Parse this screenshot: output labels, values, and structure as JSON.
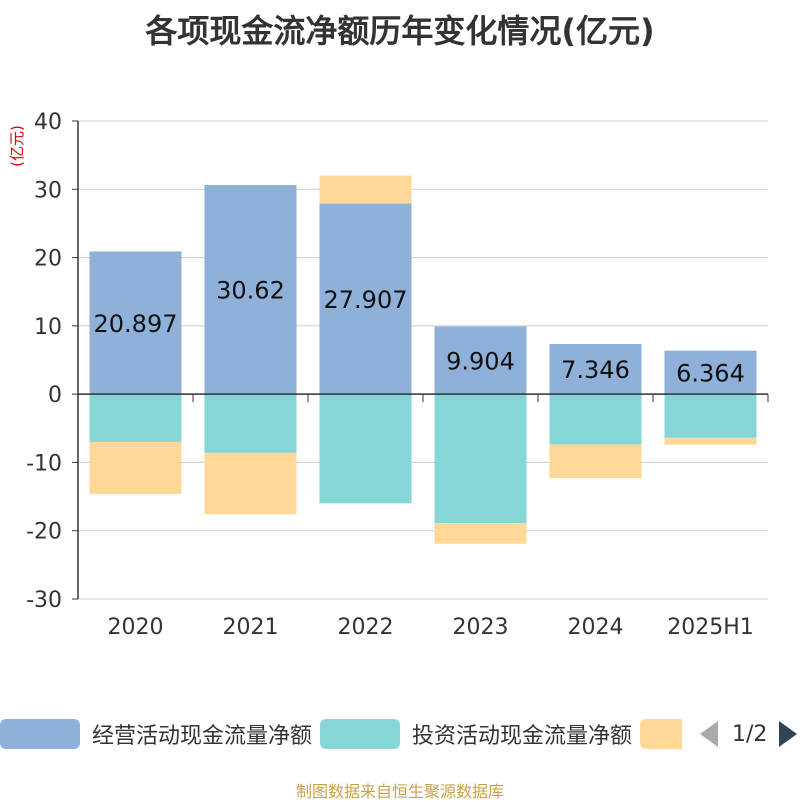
{
  "title": "各项现金流净额历年变化情况(亿元)",
  "footer": "制图数据来自恒生聚源数据库",
  "colors": {
    "operating": "#8eb0d9",
    "investing": "#86d6d8",
    "financing": "#ffd898",
    "axis": "#333333",
    "grid": "#cccccc",
    "unit": "#e00000"
  },
  "legend": {
    "items": [
      {
        "label": "经营活动现金流量净额"
      },
      {
        "label": "投资活动现金流量净额"
      },
      {
        "label": ""
      }
    ],
    "page": "1/2"
  },
  "chart_data": {
    "type": "bar",
    "stacked": true,
    "title": "各项现金流净额历年变化情况(亿元)",
    "ylabel": "(亿元)",
    "ylim": [
      -30,
      40
    ],
    "yticks": [
      40,
      30,
      20,
      10,
      0,
      -10,
      -20,
      -30
    ],
    "categories": [
      "2020",
      "2021",
      "2022",
      "2023",
      "2024",
      "2025H1"
    ],
    "grid": true,
    "legend_position": "bottom",
    "series": [
      {
        "name": "经营活动现金流量净额",
        "values": [
          20.897,
          30.62,
          27.907,
          9.904,
          7.346,
          6.364
        ],
        "labels": [
          "20.897",
          "30.62",
          "27.907",
          "9.904",
          "7.346",
          "6.364"
        ]
      },
      {
        "name": "投资活动现金流量净额",
        "values": [
          -7.0,
          -8.6,
          -16.0,
          -18.9,
          -7.4,
          -6.4
        ]
      },
      {
        "values": [
          -7.6,
          -9.0,
          4.1,
          -3.0,
          -4.9,
          -1.0
        ]
      }
    ]
  }
}
